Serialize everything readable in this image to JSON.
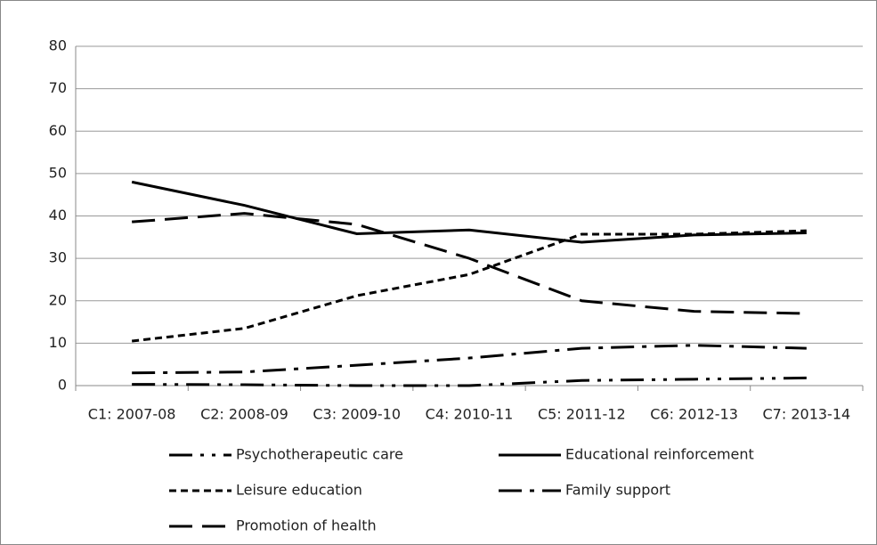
{
  "chart_data": {
    "type": "line",
    "categories": [
      "C1: 2007-08",
      "C2: 2008-09",
      "C3: 2009-10",
      "C4: 2010-11",
      "C5: 2011-12",
      "C6: 2012-13",
      "C7: 2013-14"
    ],
    "series": [
      {
        "name": "Psychotherapeutic care",
        "color": "#000000",
        "dash": "26 9 4 9 4 9",
        "values": [
          0.3,
          0.2,
          0,
          0,
          1.2,
          1.5,
          1.8
        ]
      },
      {
        "name": "Educational reinforcement",
        "color": "#000000",
        "dash": "none",
        "values": [
          48,
          42.5,
          35.8,
          36.7,
          33.8,
          35.5,
          36
        ]
      },
      {
        "name": "Leisure education",
        "color": "#000000",
        "dash": "8 5",
        "values": [
          10.5,
          13.5,
          21.2,
          26.2,
          35.7,
          35.7,
          36.5
        ]
      },
      {
        "name": "Family support",
        "color": "#000000",
        "dash": "26 9 5 9",
        "values": [
          3,
          3.2,
          4.8,
          6.5,
          8.8,
          9.5,
          8.8
        ]
      },
      {
        "name": "Promotion of health",
        "color": "#000000",
        "dash": "26 11",
        "values": [
          38.6,
          40.6,
          38,
          30,
          20,
          17.5,
          17
        ]
      }
    ],
    "ylim": [
      0,
      80
    ],
    "yticks": [
      0,
      10,
      20,
      30,
      40,
      50,
      60,
      70,
      80
    ],
    "grid": true,
    "legend": "bottom"
  }
}
